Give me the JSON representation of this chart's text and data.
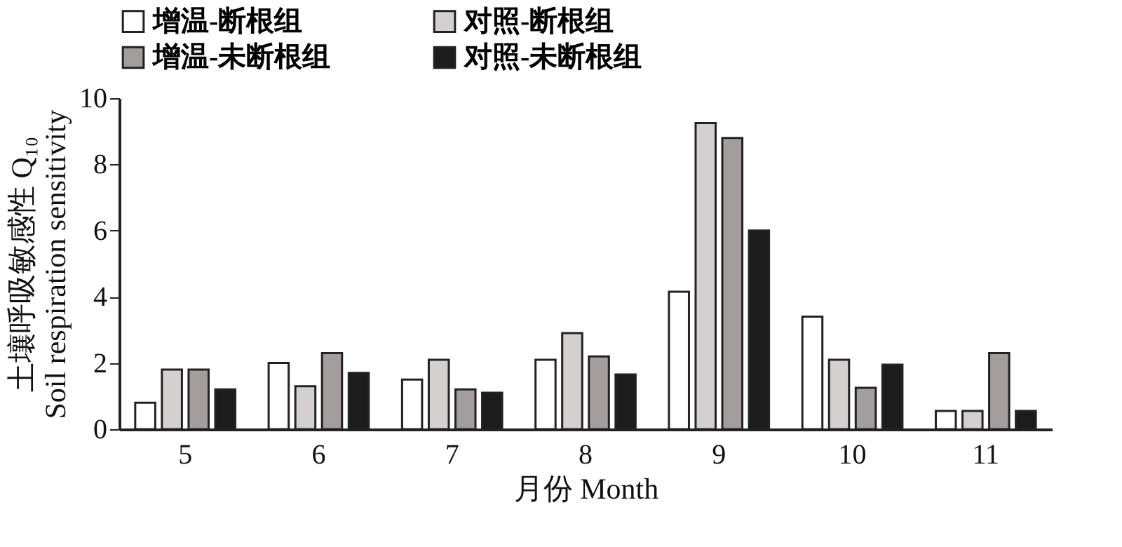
{
  "chart_data": {
    "type": "bar",
    "xlabel": "月份 Month",
    "ylabel": "土壤呼吸敏感性 Q₁₀\nSoil respiration sensitivity",
    "categories": [
      "5",
      "6",
      "7",
      "8",
      "9",
      "10",
      "11"
    ],
    "series": [
      {
        "name": "增温-断根组",
        "color": "#ffffff",
        "values": [
          0.8,
          2.0,
          1.5,
          2.1,
          4.15,
          3.4,
          0.55
        ]
      },
      {
        "name": "对照-断根组",
        "color": "#d4d0d0",
        "values": [
          1.8,
          1.3,
          2.1,
          2.9,
          9.25,
          2.1,
          0.55
        ]
      },
      {
        "name": "增温-未断根组",
        "color": "#a39d9d",
        "values": [
          1.8,
          2.3,
          1.2,
          2.2,
          8.8,
          1.25,
          2.3
        ]
      },
      {
        "name": "对照-未断根组",
        "color": "#1c1c1c",
        "values": [
          1.2,
          1.7,
          1.1,
          1.65,
          6.0,
          1.95,
          0.55
        ]
      }
    ],
    "ylim": [
      0,
      10
    ],
    "yticks": [
      0,
      2,
      4,
      6,
      8,
      10
    ],
    "grid": false,
    "legend": "top"
  }
}
